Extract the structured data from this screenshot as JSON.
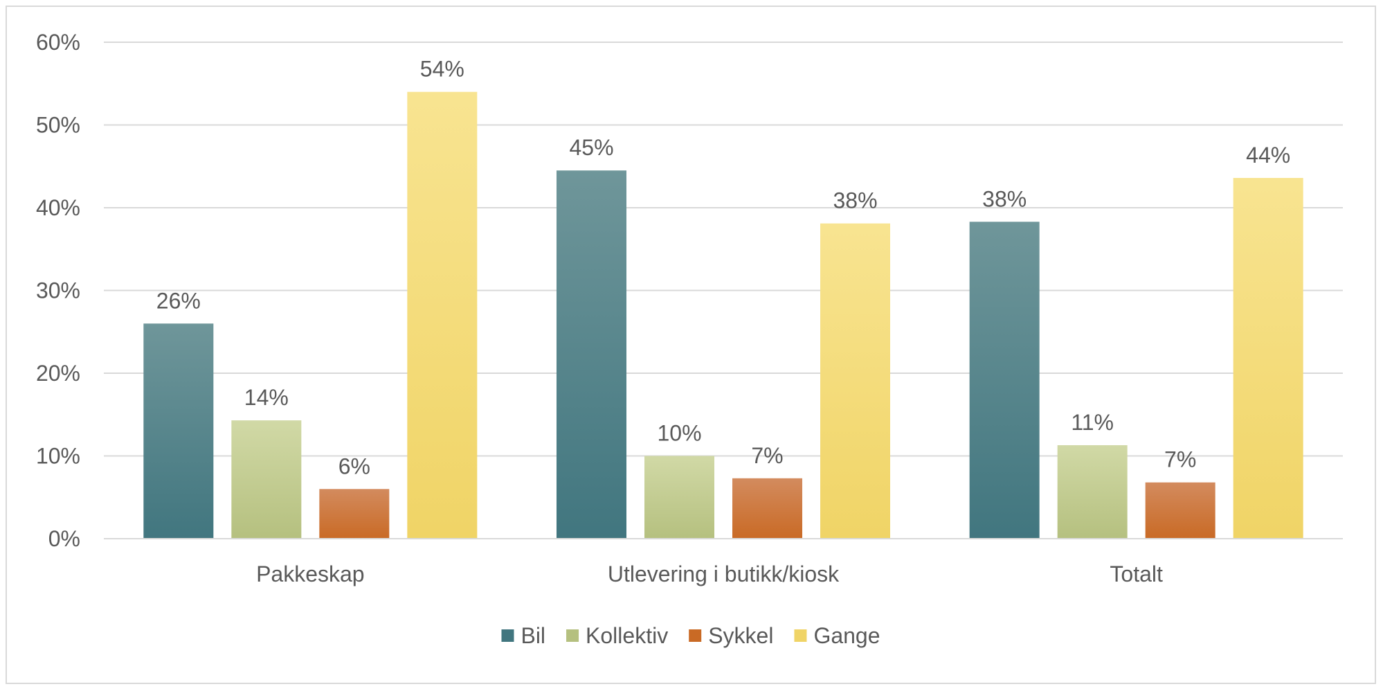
{
  "chart_data": {
    "type": "bar",
    "title": "",
    "xlabel": "",
    "ylabel": "",
    "ylim": [
      0,
      0.6
    ],
    "yticks": [
      0,
      0.1,
      0.2,
      0.3,
      0.4,
      0.5,
      0.6
    ],
    "ytick_labels": [
      "0%",
      "10%",
      "20%",
      "30%",
      "40%",
      "50%",
      "60%"
    ],
    "grid": true,
    "legend_position": "bottom",
    "categories": [
      "Pakkeskap",
      "Utlevering i butikk/kiosk",
      "Totalt"
    ],
    "series": [
      {
        "name": "Bil",
        "color_top": "#6f969a",
        "color_bottom": "#41767f",
        "values": [
          0.26,
          0.445,
          0.383
        ],
        "labels": [
          "26%",
          "45%",
          "38%"
        ]
      },
      {
        "name": "Kollektiv",
        "color_top": "#d1d9a6",
        "color_bottom": "#b5c07f",
        "values": [
          0.143,
          0.1,
          0.113
        ],
        "labels": [
          "14%",
          "10%",
          "11%"
        ]
      },
      {
        "name": "Sykkel",
        "color_top": "#d38b5e",
        "color_bottom": "#c96a25",
        "values": [
          0.06,
          0.073,
          0.068
        ],
        "labels": [
          "6%",
          "7%",
          "7%"
        ]
      },
      {
        "name": "Gange",
        "color_top": "#f8e491",
        "color_bottom": "#f0d466",
        "values": [
          0.54,
          0.381,
          0.436
        ],
        "labels": [
          "54%",
          "38%",
          "44%"
        ]
      }
    ]
  }
}
